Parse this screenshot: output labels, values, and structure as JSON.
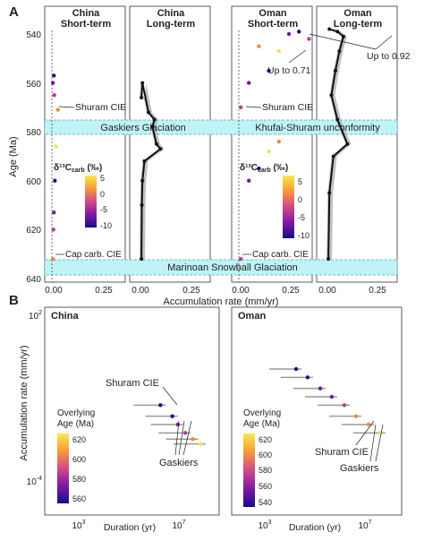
{
  "panel_a": {
    "label": "A",
    "ylabel": "Age (Ma)",
    "xlabel": "Accumulation rate (mm/yr)",
    "y_ticks": [
      "540",
      "560",
      "580",
      "600",
      "620",
      "640"
    ],
    "x_ticks": [
      "0.00",
      "0.25"
    ],
    "facets": [
      {
        "region": "China",
        "period": "Short-term"
      },
      {
        "region": "China",
        "period": "Long-term"
      },
      {
        "region": "Oman",
        "period": "Short-term"
      },
      {
        "region": "Oman",
        "period": "Long-term"
      }
    ],
    "bands": {
      "gaskiers": "Gaskiers Glaciation",
      "khufai": "Khufai-Shuram unconformity",
      "marinoan": "Marinoan Snowball Glaciation"
    },
    "annotations": {
      "shuram_china": "Shuram CIE",
      "shuram_oman": "Shuram CIE",
      "cap_china": "Cap carb. CIE",
      "cap_oman": "Cap carb. CIE",
      "up071": "Up to 0.71",
      "up092": "Up to 0.92"
    },
    "colorbar": {
      "title": "δ¹³C",
      "title_sub": "carb",
      "title_unit": " (‰)",
      "ticks": [
        "5",
        "0",
        "-5",
        "-10"
      ]
    }
  },
  "panel_b": {
    "label": "B",
    "ylabel": "Accumulation rate (mm/yr)",
    "xlabel": "Duration (yr)",
    "y_ticks": {
      "base": "10",
      "top_exp": "2",
      "bottom_exp": "-4"
    },
    "x_ticks": {
      "base": "10",
      "left_exp": "3",
      "right_exp": "7"
    },
    "facets": [
      {
        "title": "China",
        "legend_title": "Overlying\nAge (Ma)",
        "legend_ticks": [
          "620",
          "600",
          "580",
          "560"
        ],
        "shuram": "Shuram CIE",
        "gaskiers": "Gaskiers"
      },
      {
        "title": "Oman",
        "legend_title": "Overlying\nAge (Ma)",
        "legend_ticks": [
          "620",
          "600",
          "580",
          "560",
          "540"
        ],
        "shuram": "Shuram CIE",
        "gaskiers": "Gaskiers"
      }
    ]
  },
  "colors": {
    "band": "#bff3f6",
    "band_edge": "#45a9b8",
    "dark_purple": "#1a1182",
    "magenta": "#c03a9a",
    "orange": "#f08a3e",
    "yellow": "#f5e34a",
    "ribbon": "#a8a8a8"
  },
  "chart_data": [
    {
      "type": "scatter",
      "title": "China Short-term",
      "xlabel": "Accumulation rate (mm/yr)",
      "ylabel": "Age (Ma)",
      "xlim": [
        0,
        0.35
      ],
      "ylim": [
        636,
        533
      ],
      "series": [
        {
          "x": [
            0.01,
            0.005,
            0.012,
            0.03,
            0.02,
            0.015,
            0.01,
            0.008,
            0.006
          ],
          "y": [
            557,
            560,
            565,
            571,
            586,
            600,
            613,
            620,
            632
          ]
        }
      ]
    },
    {
      "type": "line",
      "title": "China Long-term",
      "xlabel": "Accumulation rate (mm/yr)",
      "ylabel": "Age (Ma)",
      "xlim": [
        0,
        0.35
      ],
      "ylim": [
        636,
        533
      ],
      "series": [
        {
          "x": [
            0.005,
            0.01,
            0.04,
            0.07,
            0.06,
            0.08,
            0.1,
            0.02,
            0.01,
            0.007,
            0.005
          ],
          "y": [
            566,
            560,
            572,
            575,
            578,
            585,
            587,
            592,
            600,
            610,
            632
          ]
        }
      ]
    },
    {
      "type": "scatter",
      "title": "Oman Short-term",
      "xlabel": "Accumulation rate (mm/yr)",
      "ylabel": "Age (Ma)",
      "xlim": [
        0,
        0.35
      ],
      "ylim": [
        636,
        533
      ],
      "series": [
        {
          "x": [
            0.3,
            0.25,
            0.35,
            0.1,
            0.2,
            0.15,
            0.05,
            0.01,
            0.2,
            0.15,
            0.1,
            0.05,
            0.01
          ],
          "y": [
            539,
            540,
            542,
            545,
            547,
            555,
            560,
            570,
            584,
            588,
            595,
            600,
            632
          ]
        }
      ]
    },
    {
      "type": "line",
      "title": "Oman Long-term",
      "xlabel": "Accumulation rate (mm/yr)",
      "ylabel": "Age (Ma)",
      "xlim": [
        0,
        0.35
      ],
      "ylim": [
        636,
        533
      ],
      "series": [
        {
          "x": [
            0.01,
            0.05,
            0.08,
            0.06,
            0.04,
            0.02,
            0.05,
            0.1,
            0.03,
            0.01,
            0.005
          ],
          "y": [
            538,
            539,
            541,
            547,
            555,
            565,
            575,
            585,
            590,
            605,
            632
          ]
        }
      ]
    },
    {
      "type": "scatter",
      "title": "China",
      "xlabel": "Duration (yr)",
      "ylabel": "Accumulation rate (mm/yr)",
      "xlog": true,
      "ylog": true,
      "series": [
        {
          "x": [
            1000000,
            3000000,
            5000000,
            10000000,
            20000000,
            40000000
          ],
          "y": [
            0.05,
            0.02,
            0.01,
            0.005,
            0.003,
            0.002
          ]
        }
      ]
    },
    {
      "type": "scatter",
      "title": "Oman",
      "xlabel": "Duration (yr)",
      "ylabel": "Accumulation rate (mm/yr)",
      "xlog": true,
      "ylog": true,
      "series": [
        {
          "x": [
            10000,
            30000,
            100000,
            300000,
            1000000,
            3000000,
            10000000,
            30000000
          ],
          "y": [
            1,
            0.5,
            0.2,
            0.1,
            0.05,
            0.02,
            0.01,
            0.005
          ]
        }
      ]
    }
  ]
}
